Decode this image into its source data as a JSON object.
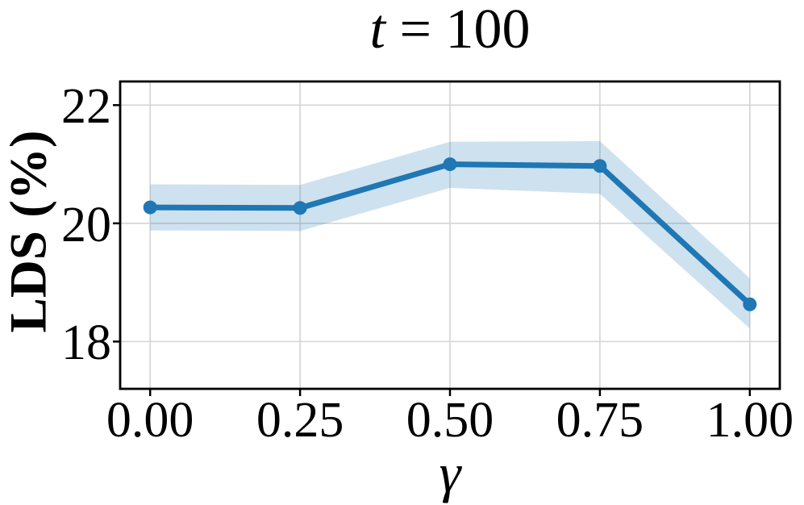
{
  "title": {
    "variable": "t",
    "rest": " = 100"
  },
  "chart_data": {
    "type": "line",
    "title": "t = 100",
    "xlabel": "γ",
    "ylabel": "LDS (%)",
    "x": [
      0.0,
      0.25,
      0.5,
      0.75,
      1.0
    ],
    "series": [
      {
        "name": "LDS",
        "values": [
          20.27,
          20.26,
          21.0,
          20.97,
          18.63
        ],
        "band_upper": [
          20.66,
          20.65,
          21.38,
          21.39,
          19.07
        ],
        "band_lower": [
          19.88,
          19.87,
          20.6,
          20.5,
          18.22
        ]
      }
    ],
    "xticks": {
      "values": [
        0.0,
        0.25,
        0.5,
        0.75,
        1.0
      ],
      "labels": [
        "0.00",
        "0.25",
        "0.50",
        "0.75",
        "1.00"
      ]
    },
    "yticks": {
      "values": [
        18,
        20,
        22
      ],
      "labels": [
        "18",
        "20",
        "22"
      ]
    },
    "xlim": [
      -0.05,
      1.05
    ],
    "ylim": [
      17.2,
      22.4
    ],
    "grid": true,
    "legend": false,
    "colors": {
      "line": "#1f77b4",
      "band": "rgba(31,119,180,0.22)",
      "grid": "#d4d4d4",
      "spine": "#000000"
    }
  }
}
